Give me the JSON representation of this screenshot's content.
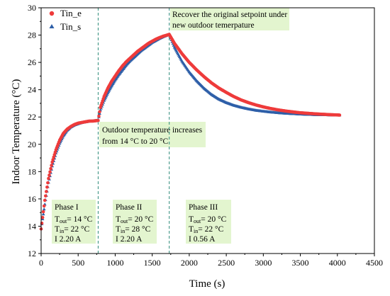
{
  "chart_data": {
    "type": "scatter",
    "xlabel": "Time (s)",
    "ylabel": "Indoor Temperature (°C)",
    "xlim": [
      0,
      4500
    ],
    "ylim": [
      12,
      30
    ],
    "xticks": [
      0,
      500,
      1000,
      1500,
      2000,
      2500,
      3000,
      3500,
      4000,
      4500
    ],
    "yticks": [
      12,
      14,
      16,
      18,
      20,
      22,
      24,
      26,
      28,
      30
    ],
    "grid": false,
    "legend": "top-left",
    "vlines": [
      770,
      1730
    ],
    "series": [
      {
        "name": "Tin_e",
        "color": "#ee3b3b",
        "marker": "circle",
        "x": [
          0,
          50,
          100,
          150,
          200,
          250,
          300,
          350,
          400,
          450,
          500,
          550,
          600,
          650,
          700,
          770,
          800,
          850,
          900,
          950,
          1000,
          1050,
          1100,
          1150,
          1200,
          1250,
          1300,
          1350,
          1400,
          1450,
          1500,
          1550,
          1600,
          1650,
          1700,
          1730,
          1800,
          1900,
          2000,
          2100,
          2200,
          2300,
          2400,
          2500,
          2600,
          2700,
          2800,
          2900,
          3000,
          3100,
          3200,
          3300,
          3400,
          3500,
          3600,
          3700,
          3800,
          3900,
          4000,
          4030
        ],
        "y": [
          13.8,
          15.9,
          17.5,
          18.7,
          19.6,
          20.3,
          20.8,
          21.1,
          21.3,
          21.45,
          21.55,
          21.6,
          21.65,
          21.7,
          21.7,
          21.75,
          22.7,
          23.5,
          24.1,
          24.6,
          25.0,
          25.4,
          25.75,
          26.05,
          26.3,
          26.55,
          26.8,
          27.0,
          27.2,
          27.4,
          27.55,
          27.7,
          27.82,
          27.92,
          28.0,
          28.05,
          27.4,
          26.65,
          26.0,
          25.45,
          24.95,
          24.5,
          24.12,
          23.8,
          23.5,
          23.25,
          23.05,
          22.88,
          22.74,
          22.62,
          22.52,
          22.44,
          22.37,
          22.31,
          22.27,
          22.23,
          22.2,
          22.17,
          22.15,
          22.14
        ]
      },
      {
        "name": "Tin_s",
        "color": "#2e5fa8",
        "marker": "triangle",
        "x": [
          0,
          50,
          100,
          150,
          200,
          250,
          300,
          350,
          400,
          450,
          500,
          550,
          600,
          650,
          700,
          770,
          800,
          850,
          900,
          950,
          1000,
          1050,
          1100,
          1150,
          1200,
          1250,
          1300,
          1350,
          1400,
          1450,
          1500,
          1550,
          1600,
          1650,
          1700,
          1730,
          1800,
          1900,
          2000,
          2100,
          2200,
          2300,
          2400,
          2500,
          2600,
          2700,
          2800,
          2900,
          3000,
          3100,
          3200,
          3300,
          3400,
          3500,
          3600,
          3700,
          3800,
          3900,
          4000,
          4030
        ],
        "y": [
          13.8,
          15.6,
          17.2,
          18.4,
          19.35,
          20.05,
          20.6,
          21.0,
          21.25,
          21.4,
          21.5,
          21.58,
          21.63,
          21.68,
          21.7,
          21.75,
          22.5,
          23.2,
          23.75,
          24.25,
          24.7,
          25.1,
          25.45,
          25.8,
          26.1,
          26.35,
          26.6,
          26.85,
          27.05,
          27.25,
          27.45,
          27.6,
          27.75,
          27.88,
          27.98,
          28.05,
          27.1,
          26.1,
          25.3,
          24.65,
          24.1,
          23.65,
          23.3,
          23.05,
          22.85,
          22.7,
          22.58,
          22.48,
          22.41,
          22.35,
          22.3,
          22.26,
          22.23,
          22.2,
          22.18,
          22.16,
          22.15,
          22.14,
          22.13,
          22.13
        ]
      }
    ],
    "annotations": {
      "increase_line1": "Outdoor temperature increases",
      "increase_line2": "from 14 °C to 20 °C",
      "recover_line1": "Recover the original setpoint under",
      "recover_line2": "new outdoor temerpature"
    },
    "phases": [
      {
        "title": "Phase I",
        "tout": "= 14 °C",
        "tin": "= 22  °C",
        "current": "   2.20 A"
      },
      {
        "title": "Phase II",
        "tout": "= 20 °C",
        "tin": "= 28  °C",
        "current": "   2.20 A"
      },
      {
        "title": "Phase III",
        "tout": "= 20 °C",
        "tin": "= 22  °C",
        "current": "   0.56 A"
      }
    ]
  },
  "colors": {
    "annotation_fill": "#e3f5cf",
    "vline": "#2e8b7a"
  }
}
